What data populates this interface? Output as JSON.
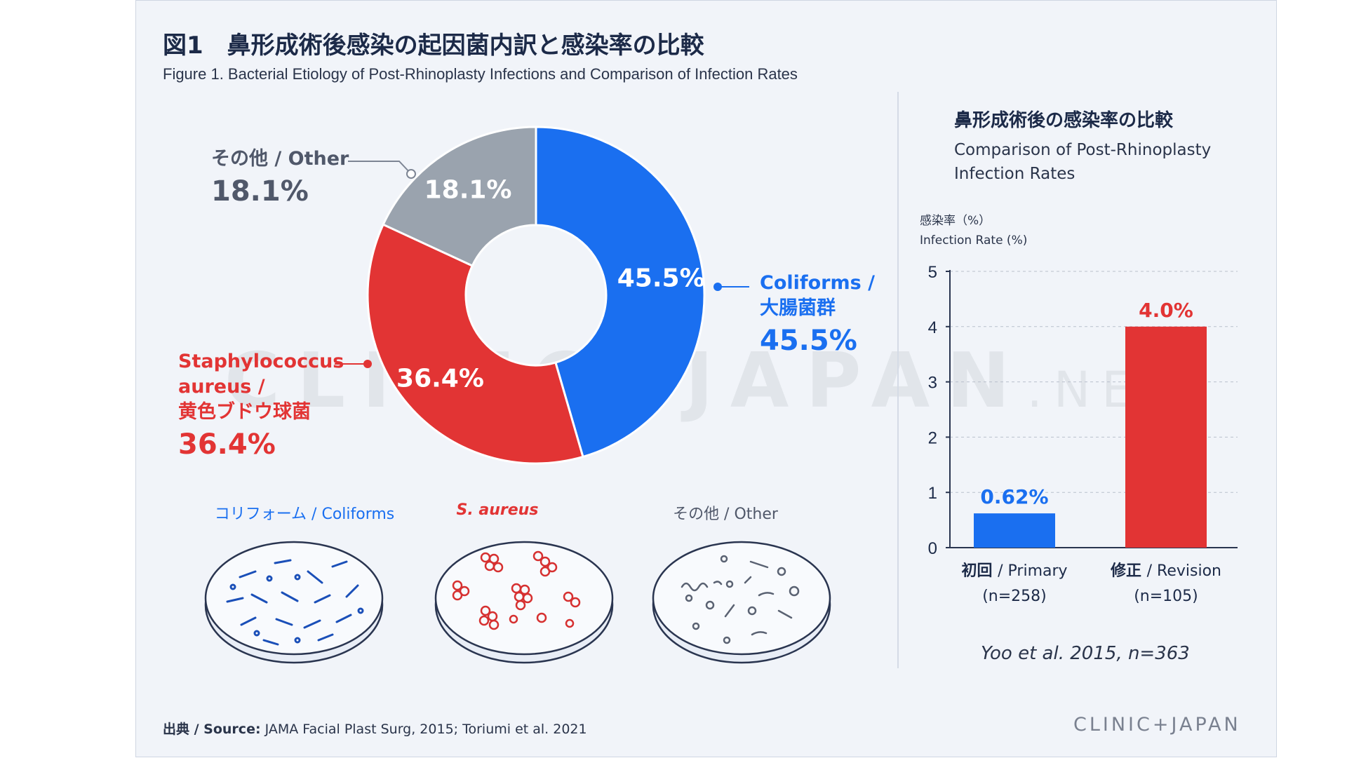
{
  "title": "図1　鼻形成術後感染の起因菌内訳と感染率の比較",
  "subtitle": "Figure 1. Bacterial Etiology of Post-Rhinoplasty Infections and Comparison of Infection Rates",
  "chart_data": [
    {
      "type": "pie",
      "title": "",
      "slices": [
        {
          "name": "Coliforms / 大腸菌群",
          "value": 45.5,
          "label": "45.5%",
          "color": "#1a6ff0"
        },
        {
          "name": "Staphylococcus aureus / 黄色ブドウ球菌",
          "value": 36.4,
          "label": "36.4%",
          "color": "#e23434"
        },
        {
          "name": "その他 / Other",
          "value": 18.1,
          "label": "18.1%",
          "color": "#9aa3ae"
        }
      ]
    },
    {
      "type": "bar",
      "title": "鼻形成術後の感染率の比較",
      "subtitle": "Comparison of Post-Rhinoplasty Infection Rates",
      "ylabel": "感染率（%）",
      "ylabel_en": "Infection Rate (%)",
      "ylim": [
        0,
        5
      ],
      "yticks": [
        "0",
        "1",
        "2",
        "3",
        "4",
        "5"
      ],
      "grid": true,
      "categories": [
        {
          "name": "初回",
          "name_en": "/ Primary",
          "n": "(n=258)"
        },
        {
          "name": "修正",
          "name_en": "/ Revision",
          "n": "(n=105)"
        }
      ],
      "values": [
        0.62,
        4.0
      ],
      "value_labels": [
        "0.62%",
        "4.0%"
      ],
      "colors": [
        "#1a6ff0",
        "#e23434"
      ]
    }
  ],
  "labels": {
    "other_name": "その他 / Other",
    "other_pct": "18.1%",
    "coliforms_name_1": "Coliforms /",
    "coliforms_name_2": "大腸菌群",
    "coliforms_pct": "45.5%",
    "staph_name_1": "Staphylococcus",
    "staph_name_2": "aureus /",
    "staph_name_3": "黄色ブドウ球菌",
    "staph_pct": "36.4%"
  },
  "dishes": {
    "coliforms": "コリフォーム / Coliforms",
    "saureus": "S. aureus",
    "other": "その他 / Other"
  },
  "citation": "Yoo et al. 2015, n=363",
  "source": {
    "prefix": "出典 / Source:",
    "text": "JAMA Facial Plast Surg, 2015; Toriumi et al. 2021"
  },
  "brand": "CLINIC+JAPAN",
  "watermark": {
    "main": "CLINIC+JAPAN",
    "suffix": ".NET"
  }
}
